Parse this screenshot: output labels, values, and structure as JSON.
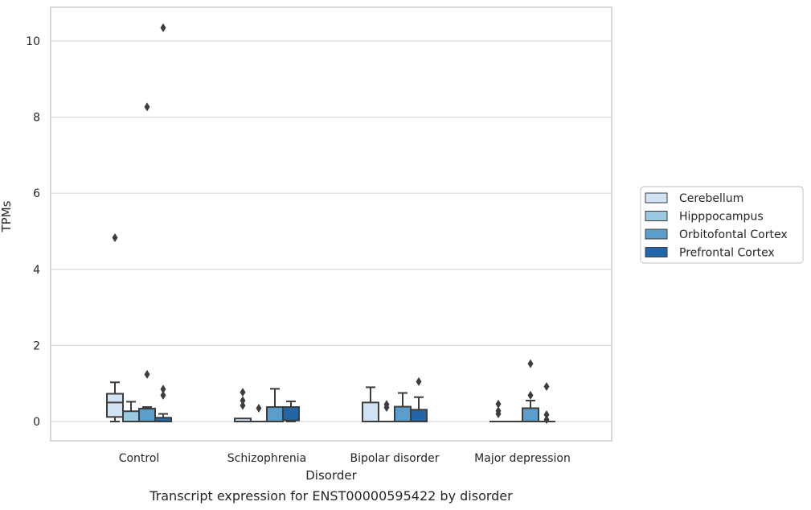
{
  "chart_data": {
    "type": "box",
    "title": "",
    "caption": "Transcript expression for ENST00000595422 by disorder",
    "xlabel": "Disorder",
    "ylabel": "TPMs",
    "ylim": [
      -0.5,
      10.85
    ],
    "yticks": [
      0,
      2,
      4,
      6,
      8,
      10
    ],
    "grid": "horizontal",
    "legend_position": "right",
    "categories": [
      "Control",
      "Schizophrenia",
      "Bipolar disorder",
      "Major depression"
    ],
    "series": [
      {
        "name": "Cerebellum",
        "color": "#d1e2f2",
        "boxes": [
          {
            "min": 0.0,
            "q1": 0.12,
            "median": 0.5,
            "q3": 0.73,
            "max": 1.03,
            "outliers": [
              4.83
            ]
          },
          {
            "min": 0.0,
            "q1": 0.0,
            "median": 0.0,
            "q3": 0.08,
            "max": 0.08,
            "outliers": [
              0.42,
              0.55,
              0.77
            ]
          },
          {
            "min": 0.0,
            "q1": 0.0,
            "median": 0.0,
            "q3": 0.5,
            "max": 0.9,
            "outliers": []
          },
          {
            "min": 0.0,
            "q1": 0.0,
            "median": 0.0,
            "q3": 0.0,
            "max": 0.0,
            "outliers": [
              0.2,
              0.28,
              0.46
            ]
          }
        ]
      },
      {
        "name": "Hipppocampus",
        "color": "#9ac8e0",
        "boxes": [
          {
            "min": 0.0,
            "q1": 0.0,
            "median": 0.0,
            "q3": 0.27,
            "max": 0.52,
            "outliers": []
          },
          {
            "min": 0.0,
            "q1": 0.0,
            "median": 0.0,
            "q3": 0.0,
            "max": 0.0,
            "outliers": [
              0.35
            ]
          },
          {
            "min": 0.0,
            "q1": 0.0,
            "median": 0.0,
            "q3": 0.0,
            "max": 0.0,
            "outliers": [
              0.37,
              0.45
            ]
          },
          {
            "min": 0.0,
            "q1": 0.0,
            "median": 0.0,
            "q3": 0.0,
            "max": 0.0,
            "outliers": []
          }
        ]
      },
      {
        "name": "Orbitofontal Cortex",
        "color": "#5a9ec9",
        "boxes": [
          {
            "min": 0.0,
            "q1": 0.0,
            "median": 0.0,
            "q3": 0.34,
            "max": 0.38,
            "outliers": [
              1.24,
              8.27
            ]
          },
          {
            "min": 0.0,
            "q1": 0.0,
            "median": 0.0,
            "q3": 0.38,
            "max": 0.86,
            "outliers": []
          },
          {
            "min": 0.0,
            "q1": 0.0,
            "median": 0.0,
            "q3": 0.39,
            "max": 0.75,
            "outliers": []
          },
          {
            "min": 0.0,
            "q1": 0.0,
            "median": 0.0,
            "q3": 0.35,
            "max": 0.55,
            "outliers": [
              0.69,
              1.52
            ]
          }
        ]
      },
      {
        "name": "Prefrontal Cortex",
        "color": "#2465a8",
        "boxes": [
          {
            "min": 0.0,
            "q1": 0.0,
            "median": 0.0,
            "q3": 0.1,
            "max": 0.2,
            "outliers": [
              0.69,
              0.85,
              10.35
            ]
          },
          {
            "min": 0.0,
            "q1": 0.03,
            "median": 0.03,
            "q3": 0.38,
            "max": 0.53,
            "outliers": []
          },
          {
            "min": 0.0,
            "q1": 0.0,
            "median": 0.0,
            "q3": 0.31,
            "max": 0.64,
            "outliers": [
              1.05
            ]
          },
          {
            "min": 0.0,
            "q1": 0.0,
            "median": 0.0,
            "q3": 0.0,
            "max": 0.0,
            "outliers": [
              0.05,
              0.18,
              0.92
            ]
          }
        ]
      }
    ]
  }
}
